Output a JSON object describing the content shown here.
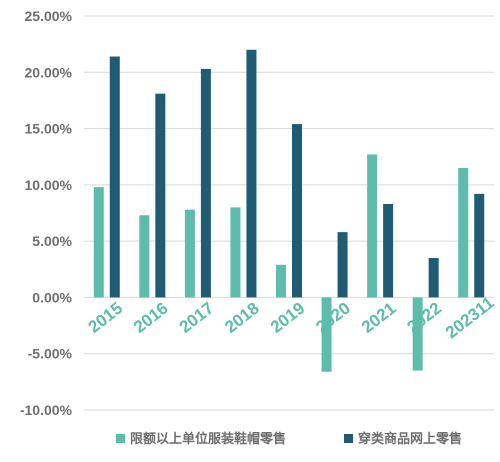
{
  "chart_data": {
    "type": "bar",
    "categories": [
      "2015",
      "2016",
      "2017",
      "2018",
      "2019",
      "2020",
      "2021",
      "2022",
      "202311"
    ],
    "series": [
      {
        "name": "限额以上单位服装鞋帽零售",
        "color": "#5dbcaa",
        "values": [
          9.8,
          7.3,
          7.8,
          8.0,
          2.9,
          -6.6,
          12.7,
          -6.5,
          11.5
        ]
      },
      {
        "name": "穿类商品网上零售",
        "color": "#1f5c74",
        "values": [
          21.4,
          18.1,
          20.3,
          22.0,
          15.4,
          5.8,
          8.3,
          3.5,
          9.2
        ]
      }
    ],
    "ylim": [
      -10,
      25
    ],
    "yticks": [
      -10,
      -5,
      0,
      5,
      10,
      15,
      20,
      25
    ],
    "ytick_labels": [
      "-10.00%",
      "-5.00%",
      "0.00%",
      "5.00%",
      "10.00%",
      "15.00%",
      "20.00%",
      "25.00%"
    ],
    "grid": true,
    "legend_position": "bottom",
    "title": "",
    "xlabel": "",
    "ylabel": ""
  }
}
